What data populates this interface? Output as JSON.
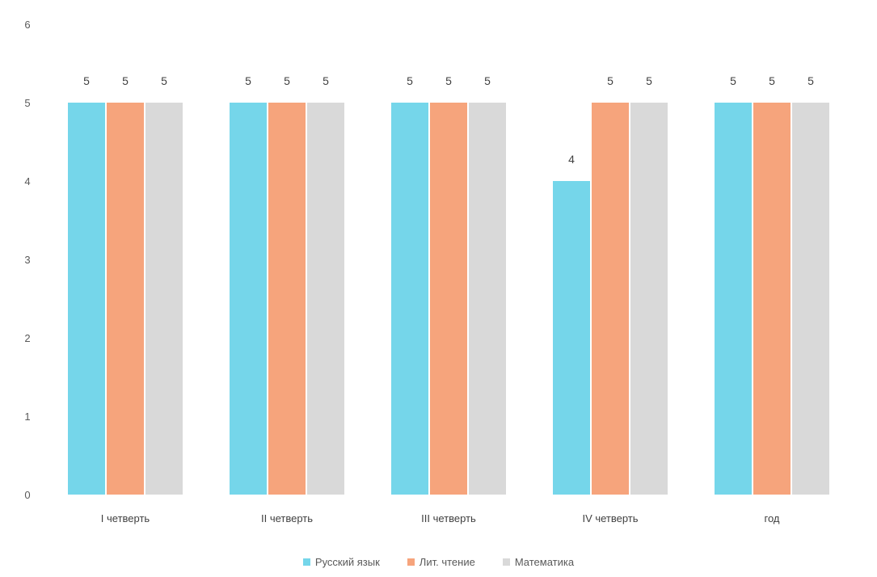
{
  "chart_data": {
    "type": "bar",
    "title": "",
    "categories": [
      "I четверть",
      "II четверть",
      "III четверть",
      "IV четверть",
      "год"
    ],
    "series": [
      {
        "name": "Русский язык",
        "color": "#75d6ea",
        "values": [
          5,
          5,
          5,
          4,
          5
        ]
      },
      {
        "name": "Лит. чтение",
        "color": "#f6a47c",
        "values": [
          5,
          5,
          5,
          5,
          5
        ]
      },
      {
        "name": "Математика",
        "color": "#d9d9d9",
        "values": [
          5,
          5,
          5,
          5,
          5
        ]
      }
    ],
    "ylim": [
      0,
      6
    ],
    "yticks": [
      "0",
      "1",
      "2",
      "3",
      "4",
      "5",
      "6"
    ],
    "grid": false,
    "legend_position": "bottom",
    "data_labels": true
  }
}
